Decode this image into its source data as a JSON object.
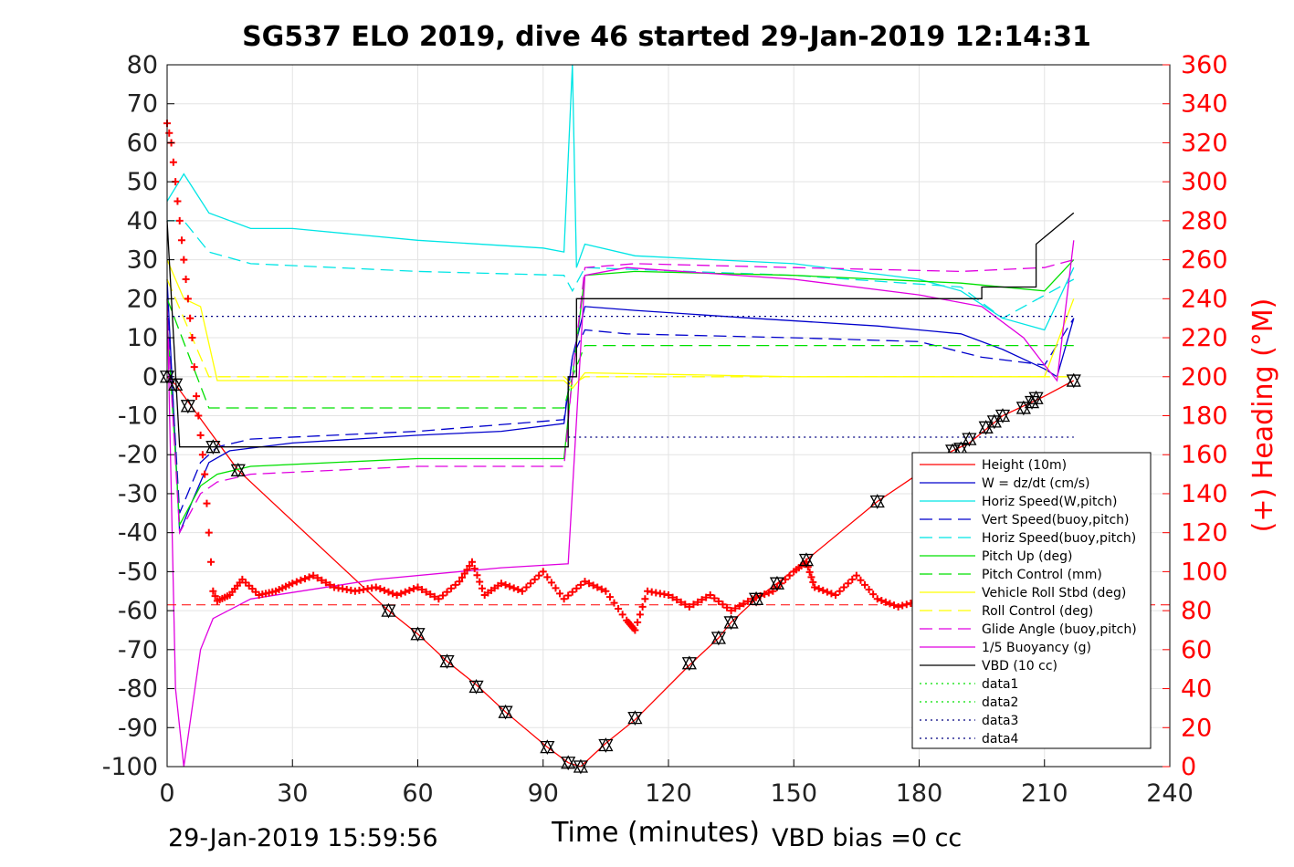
{
  "chart_data": {
    "type": "line",
    "title": "SG537 ELO 2019, dive 46 started 29-Jan-2019 12:14:31",
    "xlabel": "Time (minutes)",
    "ylabel": "",
    "y2label": "(+) Heading (°M)",
    "xlim": [
      0,
      240
    ],
    "ylim": [
      -100,
      80
    ],
    "y2lim": [
      0,
      360
    ],
    "x_ticks": [
      "0",
      "30",
      "60",
      "90",
      "120",
      "150",
      "180",
      "210",
      "240"
    ],
    "y_ticks": [
      "80",
      "70",
      "60",
      "50",
      "40",
      "30",
      "20",
      "10",
      "0",
      "-10",
      "-20",
      "-30",
      "-40",
      "-50",
      "-60",
      "-70",
      "-80",
      "-90",
      "-100"
    ],
    "y2_ticks": [
      "360",
      "340",
      "320",
      "300",
      "280",
      "260",
      "240",
      "220",
      "200",
      "180",
      "160",
      "140",
      "120",
      "100",
      "80",
      "60",
      "40",
      "20",
      "0"
    ],
    "grid": true,
    "legend_position": "lower-right",
    "footer_left": "29-Jan-2019 15:59:56",
    "footer_right": "VBD bias =0 cc",
    "colors": {
      "red": "#ff0000",
      "blue": "#0000cc",
      "cyan": "#00e5e5",
      "green": "#00e000",
      "yellow": "#ffff00",
      "magenta": "#e000e0",
      "black": "#000000"
    },
    "series": [
      {
        "name": "Height (10m)",
        "color": "#ff0000",
        "style": "solid",
        "x": [
          0,
          2,
          17,
          53,
          60,
          67,
          74,
          81,
          91,
          96,
          99,
          105,
          112,
          125,
          132,
          135,
          141,
          146,
          153,
          170,
          188,
          192,
          200,
          210,
          217
        ],
        "y": [
          0,
          -2,
          -24,
          -60,
          -66,
          -73,
          -79,
          -86,
          -95,
          -99,
          -100,
          -94,
          -88,
          -74,
          -67,
          -63,
          -57,
          -53,
          -47,
          -32,
          -19,
          -17,
          -10,
          -5,
          -1
        ]
      },
      {
        "name": "W = dz/dt (cm/s)",
        "color": "#0000cc",
        "style": "solid",
        "x": [
          0,
          3,
          6,
          10,
          15,
          30,
          60,
          80,
          95,
          97,
          100,
          112,
          140,
          170,
          190,
          200,
          210,
          213,
          217
        ],
        "y": [
          25,
          -40,
          -32,
          -22,
          -19,
          -17,
          -15,
          -14,
          -12,
          5,
          18,
          17,
          15,
          13,
          11,
          7,
          2,
          0,
          15
        ]
      },
      {
        "name": "Horiz Speed(W,pitch)",
        "color": "#00e5e5",
        "style": "solid",
        "x": [
          0,
          4,
          10,
          20,
          30,
          60,
          90,
          95,
          97,
          98,
          100,
          112,
          150,
          180,
          190,
          200,
          210,
          217
        ],
        "y": [
          45,
          52,
          42,
          38,
          38,
          35,
          33,
          32,
          80,
          28,
          34,
          31,
          29,
          25,
          22,
          15,
          12,
          28
        ]
      },
      {
        "name": "Vert Speed(buoy,pitch)",
        "color": "#0000cc",
        "style": "dashed",
        "x": [
          0,
          3,
          8,
          12,
          20,
          60,
          95,
          97,
          100,
          110,
          150,
          180,
          195,
          210,
          217
        ],
        "y": [
          20,
          -35,
          -22,
          -18,
          -16,
          -14,
          -11,
          5,
          12,
          11,
          10,
          9,
          5,
          3,
          15
        ]
      },
      {
        "name": "Horiz Speed(buoy,pitch)",
        "color": "#00e5e5",
        "style": "dashed",
        "x": [
          0,
          4,
          10,
          20,
          60,
          95,
          97,
          100,
          150,
          190,
          200,
          217
        ],
        "y": [
          40,
          40,
          32,
          29,
          27,
          26,
          22,
          28,
          26,
          23,
          15,
          25
        ]
      },
      {
        "name": "Pitch Up (deg)",
        "color": "#00e000",
        "style": "solid",
        "x": [
          0,
          3,
          8,
          12,
          20,
          60,
          95,
          97,
          100,
          112,
          150,
          190,
          210,
          217
        ],
        "y": [
          15,
          -38,
          -28,
          -25,
          -23,
          -21,
          -21,
          0,
          26,
          27,
          26,
          24,
          22,
          30
        ]
      },
      {
        "name": "Pitch Control (mm)",
        "color": "#00e000",
        "style": "dashed",
        "x": [
          0,
          10,
          95,
          97,
          100,
          217
        ],
        "y": [
          20,
          -8,
          -8,
          0,
          8,
          8
        ]
      },
      {
        "name": "Vehicle Roll Stbd (deg)",
        "color": "#ffff00",
        "style": "solid",
        "x": [
          0,
          4,
          8,
          12,
          60,
          95,
          97,
          100,
          150,
          190,
          210,
          217
        ],
        "y": [
          30,
          20,
          18,
          -1,
          -1,
          -1,
          -3,
          1,
          0,
          0,
          0,
          20
        ]
      },
      {
        "name": "Roll Control (deg)",
        "color": "#ffff00",
        "style": "dashed",
        "x": [
          0,
          10,
          95,
          97,
          100,
          217
        ],
        "y": [
          25,
          0,
          0,
          -2,
          0,
          0
        ]
      },
      {
        "name": "Glide Angle (buoy,pitch)",
        "color": "#e000e0",
        "style": "dashed",
        "x": [
          0,
          3,
          8,
          12,
          20,
          60,
          95,
          97,
          100,
          112,
          150,
          190,
          210,
          217
        ],
        "y": [
          15,
          -40,
          -30,
          -27,
          -25,
          -23,
          -23,
          0,
          28,
          29,
          28,
          27,
          28,
          30
        ]
      },
      {
        "name": "1/5 Buoyancy (g)",
        "color": "#e000e0",
        "style": "solid",
        "x": [
          0,
          2,
          4,
          6,
          8,
          11,
          20,
          50,
          80,
          96,
          100,
          110,
          150,
          180,
          195,
          205,
          210,
          213,
          217
        ],
        "y": [
          20,
          -80,
          -100,
          -85,
          -70,
          -62,
          -57,
          -52,
          -49,
          -48,
          26,
          28,
          25,
          21,
          18,
          10,
          3,
          -1,
          35
        ]
      },
      {
        "name": "VBD (10 cc)",
        "color": "#000000",
        "style": "solid",
        "x": [
          0,
          3,
          96,
          96,
          98,
          98,
          195,
          195,
          208,
          208,
          217
        ],
        "y": [
          40,
          -18,
          -18,
          0,
          0,
          20,
          20,
          23,
          23,
          34,
          42
        ]
      },
      {
        "name": "data1",
        "color": "#00e000",
        "style": "dotted",
        "x": [],
        "y": []
      },
      {
        "name": "data2",
        "color": "#00e000",
        "style": "dotted",
        "x": [],
        "y": []
      },
      {
        "name": "data3",
        "color": "#000080",
        "style": "dotted",
        "x": [
          0,
          217
        ],
        "y": [
          15.5,
          15.5
        ]
      },
      {
        "name": "data4",
        "color": "#000080",
        "style": "dotted",
        "x": [
          96,
          217
        ],
        "y": [
          -15.5,
          -15.5
        ]
      }
    ],
    "heading": {
      "name": "(+) Heading (°M)",
      "color": "#ff0000",
      "marker": "+",
      "x": [
        0,
        1,
        2,
        3,
        4,
        5,
        6,
        7,
        8,
        9,
        10,
        11,
        12,
        15,
        18,
        22,
        26,
        30,
        35,
        40,
        45,
        50,
        55,
        60,
        65,
        70,
        73,
        76,
        80,
        85,
        90,
        95,
        100,
        105,
        110,
        112,
        115,
        120,
        125,
        130,
        135,
        140,
        145,
        150,
        153,
        155,
        160,
        165,
        170,
        175,
        180,
        185,
        190,
        195,
        200,
        205,
        210,
        214,
        217
      ],
      "y": [
        330,
        320,
        300,
        280,
        260,
        240,
        220,
        190,
        170,
        150,
        120,
        90,
        85,
        88,
        96,
        88,
        90,
        94,
        98,
        92,
        90,
        92,
        88,
        92,
        86,
        95,
        105,
        88,
        94,
        90,
        100,
        86,
        95,
        90,
        75,
        70,
        90,
        88,
        82,
        88,
        80,
        86,
        90,
        100,
        105,
        92,
        88,
        98,
        86,
        82,
        85,
        80,
        84,
        88,
        82,
        86,
        90,
        85,
        88
      ]
    },
    "hline_y": -58.5,
    "triangles": {
      "x": [
        0,
        2,
        5,
        11,
        17,
        53,
        60,
        67,
        74,
        81,
        91,
        96,
        99,
        105,
        112,
        125,
        132,
        135,
        141,
        146,
        153,
        170,
        188,
        190,
        192,
        196,
        198,
        200,
        205,
        207,
        208,
        217
      ],
      "y": [
        0,
        -2,
        -7.5,
        -18,
        -24,
        -60,
        -66,
        -73,
        -79.5,
        -86,
        -95,
        -99,
        -100,
        -94.5,
        -87.5,
        -73.5,
        -67,
        -63,
        -57,
        -53,
        -47,
        -32,
        -19,
        -18.5,
        -16,
        -13,
        -11.5,
        -10,
        -8,
        -6.5,
        -5.5,
        -1
      ]
    }
  }
}
